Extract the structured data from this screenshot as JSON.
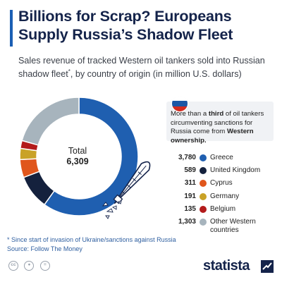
{
  "title": "Billions for Scrap? Europeans Supply Russia’s Shadow Fleet",
  "subtitle_main": "Sales revenue of tracked Western oil tankers sold into Russian shadow fleet",
  "subtitle_mark": "*",
  "subtitle_tail": ", by country of origin (in million U.S. dollars)",
  "total": {
    "label": "Total",
    "value": "6,309"
  },
  "callout": {
    "pre": "More than a ",
    "bold1": "third",
    "mid": " of oil tankers circumventing sanctions for Russia come from ",
    "bold2": "Western ownership.",
    "flag_colors": [
      "#ffffff",
      "#1c57a5",
      "#d52b1e"
    ]
  },
  "chart_data": {
    "type": "pie",
    "subtype": "donut",
    "total": 6309,
    "categories": [
      "Greece",
      "United Kingdom",
      "Cyprus",
      "Germany",
      "Belgium",
      "Other Western countries"
    ],
    "values": [
      3780,
      589,
      311,
      191,
      135,
      1303
    ],
    "value_labels": [
      "3,780",
      "589",
      "311",
      "191",
      "135",
      "1,303"
    ],
    "colors": [
      "#1f5fb0",
      "#14213d",
      "#e0561c",
      "#c9a227",
      "#b31b1b",
      "#a7b4bd"
    ]
  },
  "footnote": "* Since start of invasion of Ukraine/sanctions against Russia",
  "source": "Source: Follow The Money",
  "license_icons": [
    "cc-icon",
    "person-icon",
    "no-derivatives-icon"
  ],
  "brand": "statista",
  "accent_color": "#1b5fb4"
}
